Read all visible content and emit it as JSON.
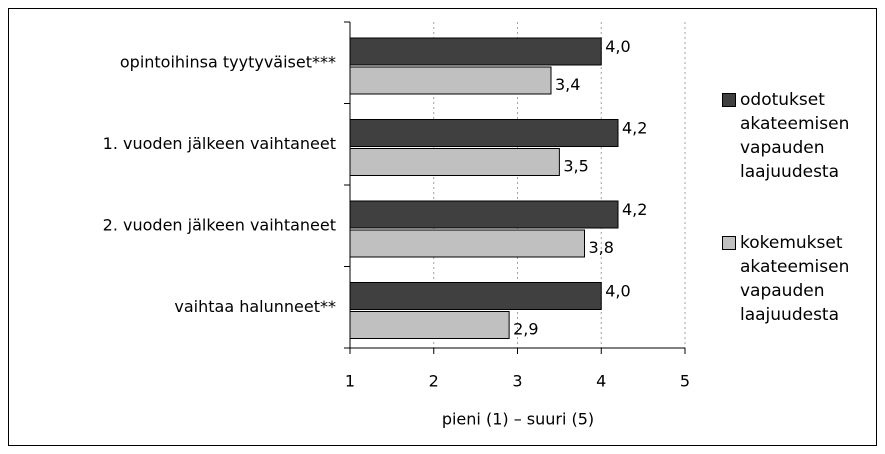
{
  "chart_data": {
    "type": "bar",
    "orientation": "horizontal",
    "x_label": "pieni (1) – suuri (5)",
    "categories": [
      "opintoihinsa tyytyväiset***",
      "1. vuoden jälkeen vaihtaneet",
      "2. vuoden jälkeen vaihtaneet",
      "vaihtaa halunneet**"
    ],
    "series": [
      {
        "name": "odotukset akateemisen vapauden laajuudesta",
        "color": "#404040",
        "values": [
          4.0,
          4.2,
          4.2,
          4.0
        ],
        "value_labels": [
          "4,0",
          "4,2",
          "4,2",
          "4,0"
        ]
      },
      {
        "name": "kokemukset akateemisen vapauden laajuudesta",
        "color": "#c0c0c0",
        "values": [
          3.4,
          3.5,
          3.8,
          2.9
        ],
        "value_labels": [
          "3,4",
          "3,5",
          "3,8",
          "2,9"
        ]
      }
    ],
    "xlim": [
      1,
      5
    ],
    "xticks": [
      1,
      2,
      3,
      4,
      5
    ],
    "grid": true,
    "legend": "right"
  }
}
